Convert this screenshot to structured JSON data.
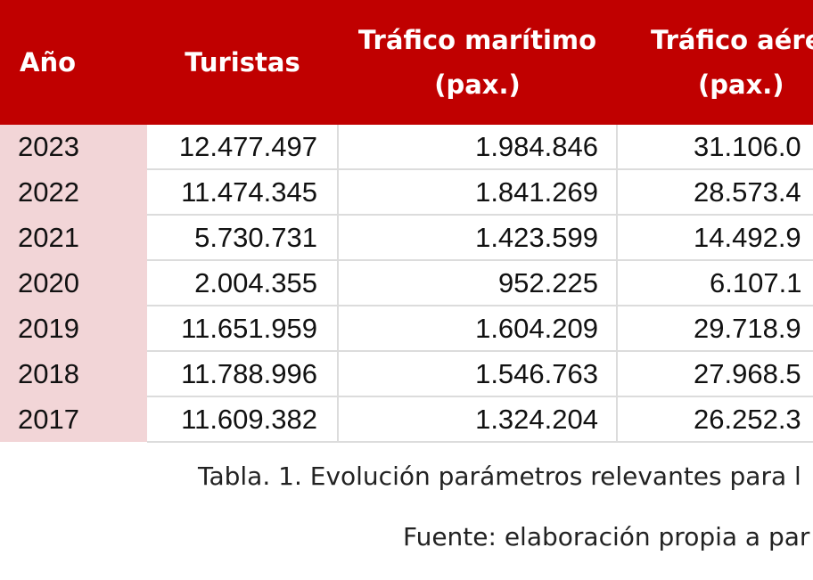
{
  "table": {
    "headers": {
      "year": "Año",
      "tourists": "Turistas",
      "maritime_line1": "Tráfico marítimo",
      "maritime_line2": "(pax.)",
      "air_line1": "Tráfico aéreo",
      "air_line2": "(pax.)"
    },
    "rows": [
      {
        "year": "2023",
        "tourists": "12.477.497",
        "maritime": "1.984.846",
        "air": "31.106.0"
      },
      {
        "year": "2022",
        "tourists": "11.474.345",
        "maritime": "1.841.269",
        "air": "28.573.4"
      },
      {
        "year": "2021",
        "tourists": "5.730.731",
        "maritime": "1.423.599",
        "air": "14.492.9"
      },
      {
        "year": "2020",
        "tourists": "2.004.355",
        "maritime": "952.225",
        "air": "6.107.1"
      },
      {
        "year": "2019",
        "tourists": "11.651.959",
        "maritime": "1.604.209",
        "air": "29.718.9"
      },
      {
        "year": "2018",
        "tourists": "11.788.996",
        "maritime": "1.546.763",
        "air": "27.968.5"
      },
      {
        "year": "2017",
        "tourists": "11.609.382",
        "maritime": "1.324.204",
        "air": "26.252.3"
      }
    ]
  },
  "caption": "Tabla. 1. Evolución parámetros relevantes para l",
  "source": "Fuente: elaboración propia a par",
  "colors": {
    "header_bg": "#c00000",
    "year_col_bg": "#f2d5d7",
    "grid_line": "#dcdcdc"
  }
}
